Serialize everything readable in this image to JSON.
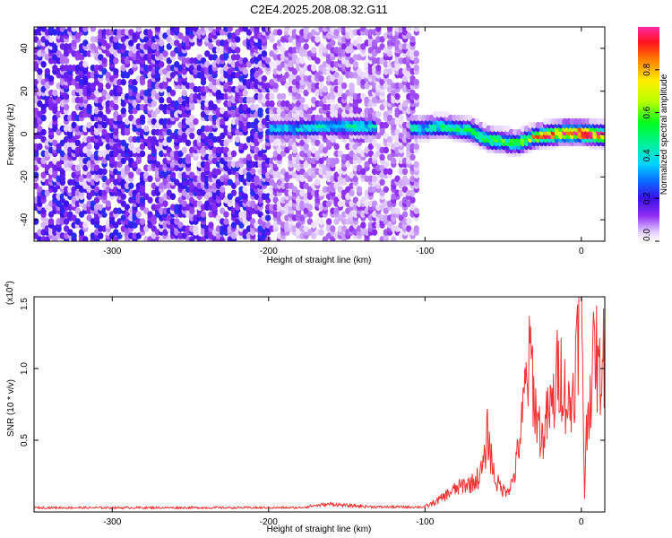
{
  "title": "C2E4.2025.208.08.32.G11",
  "chart_data": [
    {
      "type": "heatmap",
      "xlabel": "Height of straight line (km)",
      "ylabel": "Frequency (Hz)",
      "xlim": [
        -350,
        15
      ],
      "ylim": [
        -50,
        50
      ],
      "x_ticks": [
        -300,
        -200,
        -100,
        0
      ],
      "y_ticks": [
        -40,
        -20,
        0,
        20,
        40
      ],
      "colorbar": {
        "label": "Normalized spectral amplitude",
        "range": [
          0.0,
          1.0
        ],
        "ticks": [
          0.0,
          0.2,
          0.4,
          0.6,
          0.8
        ]
      },
      "ridge": [
        {
          "x": -200,
          "f": 3
        },
        {
          "x": -180,
          "f": 3
        },
        {
          "x": -160,
          "f": 4
        },
        {
          "x": -140,
          "f": 4
        },
        {
          "x": -110,
          "f": 3
        },
        {
          "x": -100,
          "f": 3
        },
        {
          "x": -90,
          "f": 4
        },
        {
          "x": -80,
          "f": 3
        },
        {
          "x": -70,
          "f": 2
        },
        {
          "x": -60,
          "f": -2
        },
        {
          "x": -50,
          "f": -3
        },
        {
          "x": -40,
          "f": -4
        },
        {
          "x": -30,
          "f": -1
        },
        {
          "x": -20,
          "f": 0
        },
        {
          "x": -10,
          "f": 1
        },
        {
          "x": 0,
          "f": 1
        },
        {
          "x": 10,
          "f": 0
        },
        {
          "x": 15,
          "f": 0
        }
      ],
      "ridge_amplitude": [
        {
          "x": -200,
          "a": 0.35
        },
        {
          "x": -150,
          "a": 0.4
        },
        {
          "x": -110,
          "a": 0.4
        },
        {
          "x": -80,
          "a": 0.45
        },
        {
          "x": -60,
          "a": 0.55
        },
        {
          "x": -40,
          "a": 0.55
        },
        {
          "x": -20,
          "a": 0.85
        },
        {
          "x": 0,
          "a": 0.95
        },
        {
          "x": 15,
          "a": 0.9
        }
      ]
    },
    {
      "type": "line",
      "xlabel": "Height of straight line (km)",
      "ylabel": "SNR (10 * v/v)",
      "y_multiplier": "(x10^4)",
      "xlim": [
        -350,
        15
      ],
      "ylim": [
        0,
        15000
      ],
      "x_ticks": [
        -300,
        -200,
        -100,
        0
      ],
      "y_ticks": [
        5000,
        10000,
        15000
      ],
      "y_tick_labels": [
        "0.5",
        "1.0",
        "1.5"
      ],
      "series": [
        {
          "color": "#ee3333",
          "points": [
            [
              -350,
              300
            ],
            [
              -300,
              300
            ],
            [
              -250,
              300
            ],
            [
              -200,
              300
            ],
            [
              -180,
              300
            ],
            [
              -170,
              450
            ],
            [
              -160,
              550
            ],
            [
              -150,
              450
            ],
            [
              -130,
              350
            ],
            [
              -110,
              350
            ],
            [
              -100,
              350
            ],
            [
              -95,
              600
            ],
            [
              -90,
              900
            ],
            [
              -85,
              1300
            ],
            [
              -80,
              1600
            ],
            [
              -75,
              1900
            ],
            [
              -70,
              2000
            ],
            [
              -65,
              2500
            ],
            [
              -62,
              3500
            ],
            [
              -60,
              5600
            ],
            [
              -58,
              4000
            ],
            [
              -55,
              2200
            ],
            [
              -50,
              1500
            ],
            [
              -45,
              1800
            ],
            [
              -42,
              3000
            ],
            [
              -40,
              4800
            ],
            [
              -38,
              6000
            ],
            [
              -36,
              8500
            ],
            [
              -34,
              9800
            ],
            [
              -32,
              11000
            ],
            [
              -30,
              7500
            ],
            [
              -28,
              6500
            ],
            [
              -25,
              5000
            ],
            [
              -22,
              6500
            ],
            [
              -20,
              7000
            ],
            [
              -17,
              8000
            ],
            [
              -15,
              10000
            ],
            [
              -12,
              9500
            ],
            [
              -10,
              8000
            ],
            [
              -7,
              7000
            ],
            [
              -5,
              9000
            ],
            [
              -3,
              11000
            ],
            [
              -1,
              14000
            ],
            [
              0,
              15000
            ],
            [
              1,
              10000
            ],
            [
              2,
              1000
            ],
            [
              3,
              5000
            ],
            [
              5,
              8000
            ],
            [
              7,
              9500
            ],
            [
              9,
              12000
            ],
            [
              11,
              9000
            ],
            [
              13,
              10500
            ],
            [
              15,
              11000
            ]
          ]
        }
      ]
    }
  ]
}
